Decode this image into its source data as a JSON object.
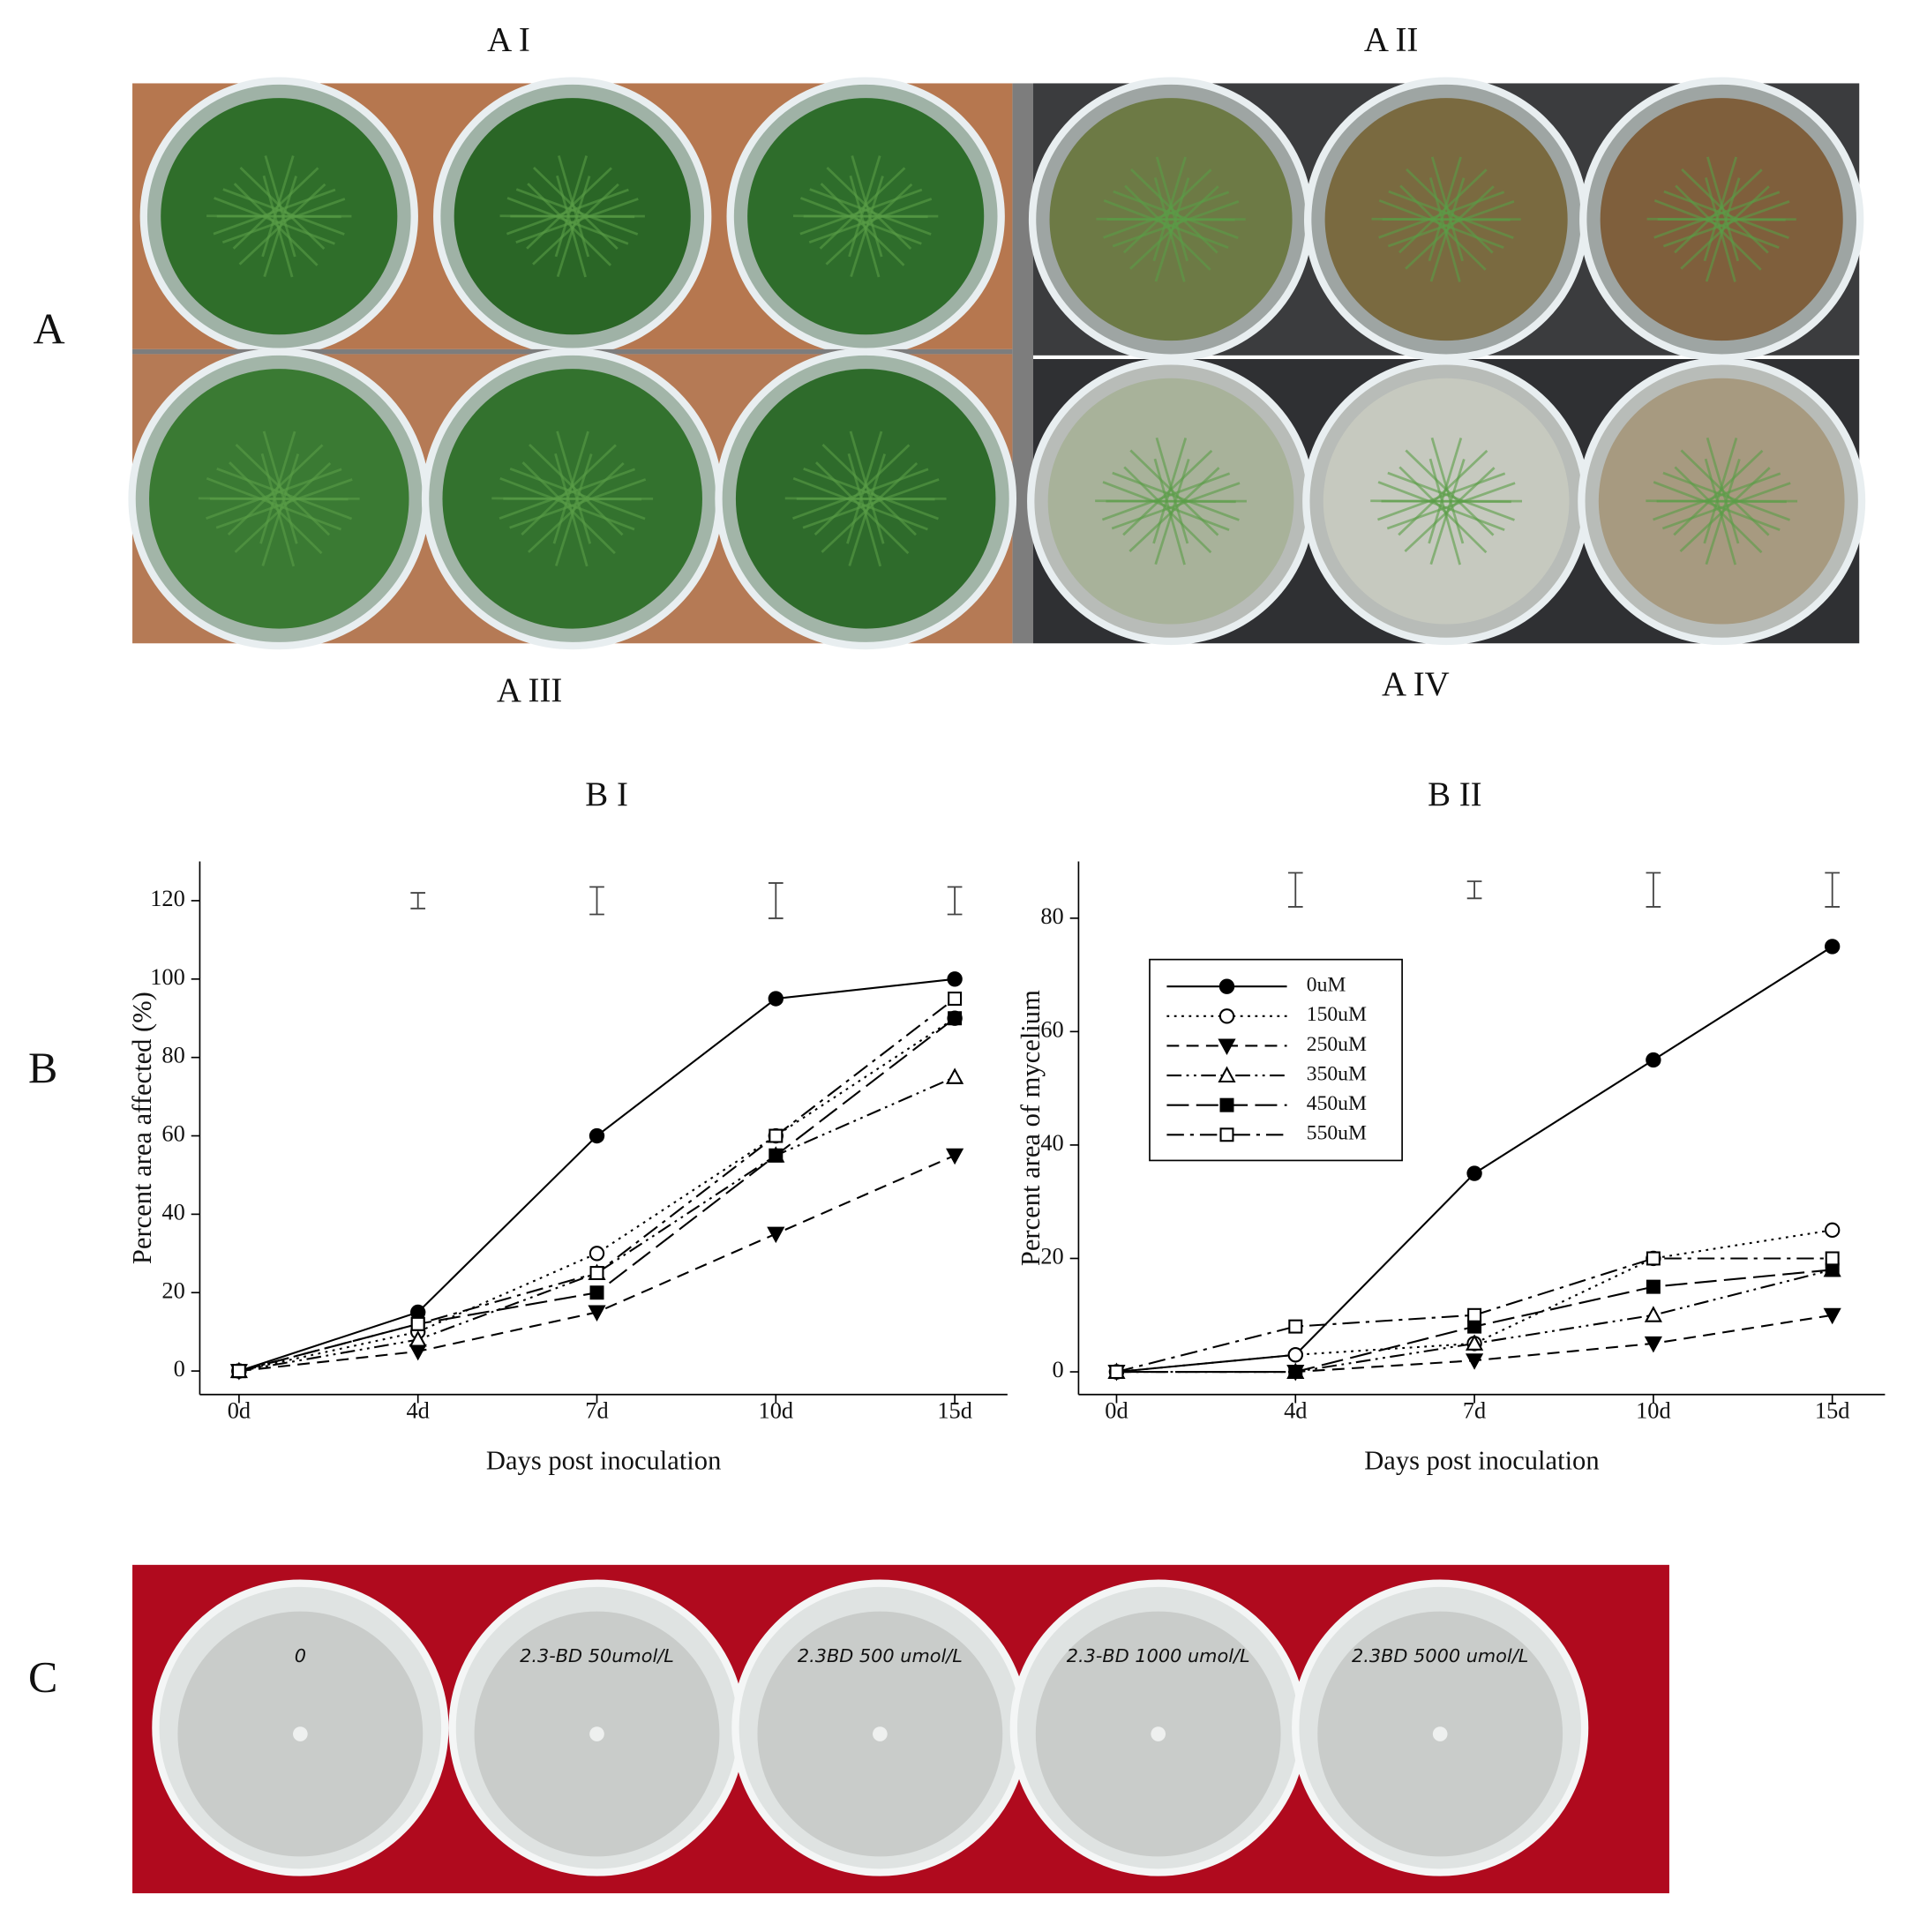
{
  "figure": {
    "panel_labels": [
      "A",
      "B",
      "C"
    ],
    "photo_titles": [
      "A I",
      "A II",
      "A III",
      "A IV"
    ],
    "chart_titles": [
      "B I",
      "B II"
    ],
    "dish_labels": [
      "0",
      "2.3-BD 50umol/L",
      "2.3BD 500 umol/L",
      "2.3-BD 1000 umol/L",
      "2.3BD 5000 umol/L"
    ]
  },
  "chart_data": [
    {
      "type": "line",
      "xlabel": "Days post inoculation",
      "ylabel": "Percent area affected (%)",
      "categories": [
        "0d",
        "4d",
        "7d",
        "10d",
        "15d"
      ],
      "ylim": [
        -6,
        130
      ],
      "yticks": [
        0,
        20,
        40,
        60,
        80,
        100,
        120
      ],
      "error_bars": {
        "values": [
          null,
          120,
          120,
          120,
          120
        ],
        "errors": [
          null,
          2,
          3.5,
          4.5,
          3.5
        ]
      },
      "series": [
        {
          "color": "#000000",
          "marker": "circle",
          "filled": true,
          "dash": "",
          "values": [
            0,
            15,
            60,
            95,
            100
          ]
        },
        {
          "color": "#000000",
          "marker": "circle",
          "filled": false,
          "dash": "2,4",
          "values": [
            0,
            10,
            30,
            60,
            90
          ]
        },
        {
          "color": "#000000",
          "marker": "triangle-down",
          "filled": true,
          "dash": "10,6",
          "values": [
            0,
            5,
            15,
            35,
            55
          ]
        },
        {
          "color": "#000000",
          "marker": "triangle-up",
          "filled": false,
          "dash": "12,4,2,4,2,4",
          "values": [
            0,
            8,
            25,
            55,
            75
          ]
        },
        {
          "color": "#000000",
          "marker": "square",
          "filled": true,
          "dash": "18,6",
          "values": [
            0,
            12,
            20,
            55,
            90
          ]
        },
        {
          "color": "#000000",
          "marker": "square",
          "filled": false,
          "dash": "14,5,3,5",
          "values": [
            0,
            12,
            25,
            60,
            95
          ]
        }
      ]
    },
    {
      "type": "line",
      "xlabel": "Days post inoculation",
      "ylabel": "Percent area of mycelium",
      "categories": [
        "0d",
        "4d",
        "7d",
        "10d",
        "15d"
      ],
      "ylim": [
        -4,
        90
      ],
      "yticks": [
        0,
        20,
        40,
        60,
        80
      ],
      "legend": "upper left",
      "error_bars": {
        "values": [
          null,
          85,
          85,
          85,
          85
        ],
        "errors": [
          null,
          3,
          1.5,
          3,
          3
        ]
      },
      "series": [
        {
          "name": "0uM",
          "color": "#000000",
          "marker": "circle",
          "filled": true,
          "dash": "",
          "values": [
            0,
            3,
            35,
            55,
            75
          ]
        },
        {
          "name": "150uM",
          "color": "#000000",
          "marker": "circle",
          "filled": false,
          "dash": "2,4",
          "values": [
            0,
            3,
            5,
            20,
            25
          ]
        },
        {
          "name": "250uM",
          "color": "#000000",
          "marker": "triangle-down",
          "filled": true,
          "dash": "10,6",
          "values": [
            0,
            0,
            2,
            5,
            10
          ]
        },
        {
          "name": "350uM",
          "color": "#000000",
          "marker": "triangle-up",
          "filled": false,
          "dash": "12,4,2,4,2,4",
          "values": [
            0,
            0,
            5,
            10,
            18
          ]
        },
        {
          "name": "450uM",
          "color": "#000000",
          "marker": "square",
          "filled": true,
          "dash": "18,6",
          "values": [
            0,
            0,
            8,
            15,
            18
          ]
        },
        {
          "name": "550uM",
          "color": "#000000",
          "marker": "square",
          "filled": false,
          "dash": "14,5,3,5",
          "values": [
            0,
            8,
            10,
            20,
            20
          ]
        }
      ]
    }
  ]
}
